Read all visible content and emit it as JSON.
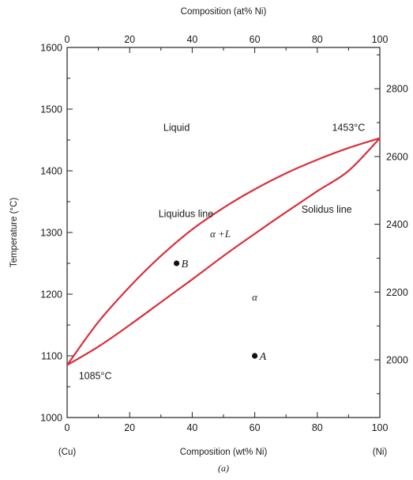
{
  "chart_data": {
    "type": "line",
    "title": "",
    "xlabel": "Composition (wt% Ni)",
    "x2label": "Composition (at% Ni)",
    "ylabel": "Temperature (°C)",
    "xlim": [
      0,
      100
    ],
    "ylim": [
      1000,
      1600
    ],
    "xticks": [
      0,
      20,
      40,
      60,
      80,
      100
    ],
    "x2ticks": [
      0,
      20,
      40,
      60,
      80,
      100
    ],
    "yticks": [
      1000,
      1100,
      1200,
      1300,
      1400,
      1500,
      1600
    ],
    "y2label": "",
    "y2ticks": [
      2000,
      2200,
      2400,
      2600,
      2800
    ],
    "end_labels": {
      "left": "(Cu)",
      "right": "(Ni)"
    },
    "caption": "(a)",
    "line_color": "#d8303c",
    "series": [
      {
        "name": "Liquidus line",
        "x": [
          0,
          10,
          20,
          30,
          40,
          50,
          60,
          70,
          80,
          90,
          100
        ],
        "y": [
          1085,
          1155,
          1212,
          1262,
          1305,
          1340,
          1370,
          1396,
          1418,
          1437,
          1453
        ]
      },
      {
        "name": "Solidus line",
        "x": [
          0,
          10,
          20,
          30,
          40,
          50,
          60,
          70,
          80,
          90,
          100
        ],
        "y": [
          1085,
          1115,
          1150,
          1187,
          1224,
          1262,
          1298,
          1333,
          1367,
          1400,
          1453
        ]
      }
    ],
    "points": [
      {
        "label": "B",
        "x": 35,
        "y": 1250
      },
      {
        "label": "A",
        "x": 60,
        "y": 1100
      }
    ],
    "annotations": [
      {
        "text": "Liquid",
        "x": 35,
        "y": 1465
      },
      {
        "text": "1453°C",
        "x": 90,
        "y": 1465
      },
      {
        "text": "Liquidus line",
        "x": 38,
        "y": 1325
      },
      {
        "text": "Solidus line",
        "x": 83,
        "y": 1332
      },
      {
        "text": "α +L",
        "x": 49,
        "y": 1292
      },
      {
        "text": "α",
        "x": 60,
        "y": 1190
      },
      {
        "text": "1085°C",
        "x": 9,
        "y": 1062
      }
    ]
  }
}
